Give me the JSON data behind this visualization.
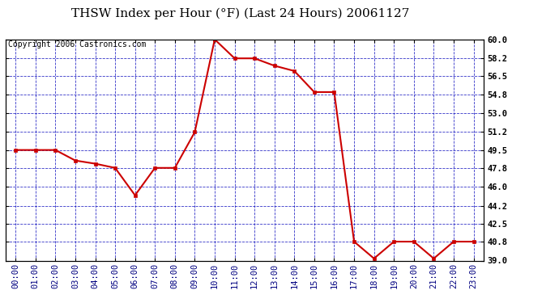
{
  "title": "THSW Index per Hour (°F) (Last 24 Hours) 20061127",
  "copyright": "Copyright 2006 Castronics.com",
  "x_labels": [
    "00:00",
    "01:00",
    "02:00",
    "03:00",
    "04:00",
    "05:00",
    "06:00",
    "07:00",
    "08:00",
    "09:00",
    "10:00",
    "11:00",
    "12:00",
    "13:00",
    "14:00",
    "15:00",
    "16:00",
    "17:00",
    "18:00",
    "19:00",
    "20:00",
    "21:00",
    "22:00",
    "23:00"
  ],
  "y_values": [
    49.5,
    49.5,
    49.5,
    48.5,
    48.2,
    47.8,
    45.2,
    47.8,
    47.8,
    51.2,
    60.0,
    58.2,
    58.2,
    57.5,
    57.0,
    55.0,
    55.0,
    40.8,
    39.2,
    40.8,
    40.8,
    39.2,
    40.8,
    40.8
  ],
  "ylim_min": 39.0,
  "ylim_max": 60.0,
  "yticks": [
    39.0,
    40.8,
    42.5,
    44.2,
    46.0,
    47.8,
    49.5,
    51.2,
    53.0,
    54.8,
    56.5,
    58.2,
    60.0
  ],
  "line_color": "#cc0000",
  "marker_color": "#cc0000",
  "outer_bg": "#ffffff",
  "plot_bg": "#ffffff",
  "grid_color": "#0000bb",
  "title_color": "#000000",
  "border_color": "#000000",
  "copyright_color": "#000000",
  "title_fontsize": 11,
  "copyright_fontsize": 7,
  "tick_fontsize": 7.5,
  "marker_size": 3,
  "line_width": 1.5
}
